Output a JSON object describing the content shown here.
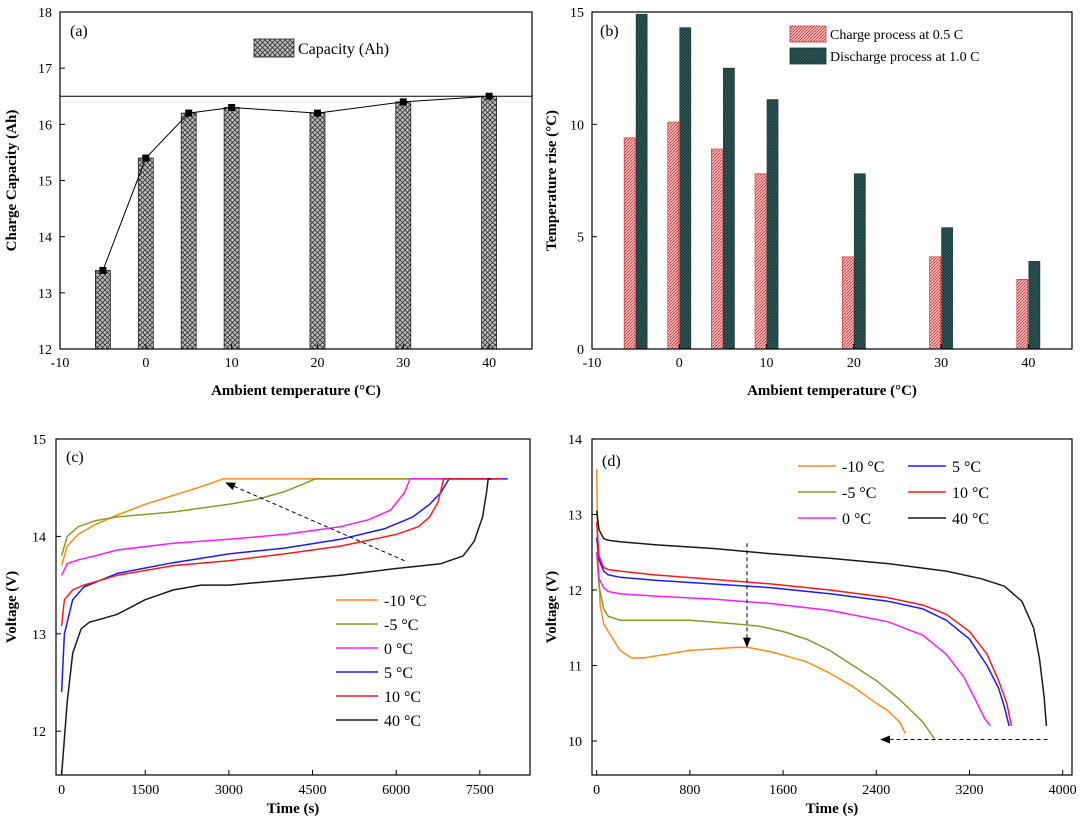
{
  "chart_data": [
    {
      "panel": "(a)",
      "type": "bar",
      "xlabel": "Ambient temperature (°C)",
      "ylabel": "Charge Capacity (Ah)",
      "xlim": [
        -10,
        45
      ],
      "ylim": [
        12,
        18
      ],
      "xticks": [
        -10,
        0,
        10,
        20,
        30,
        40
      ],
      "yticks": [
        12,
        13,
        14,
        15,
        16,
        17,
        18
      ],
      "x": [
        -5,
        0,
        5,
        10,
        20,
        30,
        40
      ],
      "values": [
        13.4,
        15.4,
        16.2,
        16.3,
        16.2,
        16.4,
        16.5
      ],
      "reference_line_y": 16.5,
      "legend": [
        "Capacity (Ah)"
      ],
      "legend_position": "top-center",
      "markers": "square-with-line"
    },
    {
      "panel": "(b)",
      "type": "bar",
      "xlabel": "Ambient temperature (°C)",
      "ylabel": "Temperature rise (°C)",
      "xlim": [
        -10,
        45
      ],
      "ylim": [
        0,
        15
      ],
      "xticks": [
        -10,
        0,
        10,
        20,
        30,
        40
      ],
      "yticks": [
        0,
        5,
        10,
        15
      ],
      "x": [
        -5,
        0,
        5,
        10,
        20,
        30,
        40
      ],
      "series": [
        {
          "name": "Charge process at 0.5 C",
          "color": "#f4a6a6",
          "values": [
            9.4,
            10.1,
            8.9,
            7.8,
            4.1,
            4.1,
            3.1
          ]
        },
        {
          "name": "Discharge process at 1.0 C",
          "color": "#2f5a5a",
          "values": [
            14.9,
            14.3,
            12.5,
            11.1,
            7.8,
            5.4,
            3.9
          ]
        }
      ],
      "legend_position": "top-right"
    },
    {
      "panel": "(c)",
      "type": "line",
      "xlabel": "Time (s)",
      "ylabel": "Voltage (V)",
      "xlim": [
        -100,
        8400
      ],
      "ylim": [
        11.55,
        15
      ],
      "xticks": [
        0,
        1500,
        3000,
        4500,
        6000,
        7500
      ],
      "yticks": [
        12,
        13,
        14,
        15
      ],
      "legend_position": "bottom-right",
      "annotation": "dashed arrow from (6150, 13.75) to (2950, 14.55)",
      "series": [
        {
          "name": "-10 °C",
          "color": "#ff8c1a",
          "x": [
            0,
            100,
            300,
            600,
            1000,
            1500,
            2000,
            2500,
            2900,
            3500,
            4500,
            6000,
            7000,
            7800
          ],
          "y": [
            13.7,
            13.9,
            14.02,
            14.12,
            14.22,
            14.33,
            14.42,
            14.51,
            14.59,
            14.59,
            14.59,
            14.59,
            14.59,
            14.59
          ]
        },
        {
          "name": "-5 °C",
          "color": "#8a9a2a",
          "x": [
            0,
            100,
            300,
            600,
            1000,
            2000,
            3000,
            3500,
            4000,
            4300,
            4550,
            5000,
            6000,
            7000,
            7800
          ],
          "y": [
            13.8,
            14.0,
            14.1,
            14.16,
            14.2,
            14.25,
            14.33,
            14.38,
            14.46,
            14.53,
            14.59,
            14.59,
            14.59,
            14.59,
            14.59
          ]
        },
        {
          "name": "0 °C",
          "color": "#ff1aff",
          "x": [
            0,
            100,
            300,
            600,
            1000,
            2000,
            3000,
            4000,
            5000,
            5500,
            5900,
            6150,
            6250,
            6500,
            7000,
            7800
          ],
          "y": [
            13.6,
            13.72,
            13.76,
            13.8,
            13.86,
            13.93,
            13.97,
            14.02,
            14.1,
            14.17,
            14.27,
            14.45,
            14.59,
            14.59,
            14.59,
            14.59
          ]
        },
        {
          "name": "5 °C",
          "color": "#1a1aff",
          "x": [
            0,
            50,
            200,
            400,
            700,
            1000,
            2000,
            3000,
            4000,
            5000,
            5800,
            6300,
            6600,
            6800,
            6950,
            7000,
            7500,
            8000
          ],
          "y": [
            12.4,
            13.0,
            13.35,
            13.48,
            13.55,
            13.62,
            13.73,
            13.82,
            13.88,
            13.97,
            14.08,
            14.2,
            14.33,
            14.45,
            14.59,
            14.59,
            14.59,
            14.59
          ]
        },
        {
          "name": "10 °C",
          "color": "#ff1a1a",
          "x": [
            0,
            50,
            200,
            400,
            700,
            1000,
            2000,
            3000,
            4000,
            5000,
            6000,
            6400,
            6600,
            6750,
            6850,
            7000,
            7500,
            7900
          ],
          "y": [
            13.08,
            13.35,
            13.45,
            13.5,
            13.55,
            13.6,
            13.7,
            13.75,
            13.82,
            13.9,
            14.02,
            14.1,
            14.2,
            14.35,
            14.59,
            14.59,
            14.59,
            14.59
          ]
        },
        {
          "name": "40 °C",
          "color": "#1a1a1a",
          "x": [
            0,
            100,
            200,
            350,
            500,
            700,
            1000,
            1500,
            2000,
            2500,
            3000,
            4000,
            5000,
            6000,
            6800,
            7200,
            7400,
            7550,
            7620,
            7650,
            7700
          ],
          "y": [
            11.55,
            12.3,
            12.8,
            13.05,
            13.12,
            13.15,
            13.2,
            13.35,
            13.45,
            13.5,
            13.5,
            13.55,
            13.6,
            13.67,
            13.72,
            13.8,
            13.95,
            14.2,
            14.45,
            14.59,
            14.59
          ]
        }
      ]
    },
    {
      "panel": "(d)",
      "type": "line",
      "xlabel": "Time (s)",
      "ylabel": "Voltage (V)",
      "xlim": [
        -40,
        4080
      ],
      "ylim": [
        9.55,
        14
      ],
      "xticks": [
        0,
        800,
        1600,
        2400,
        3200,
        4000
      ],
      "yticks": [
        10,
        11,
        12,
        13,
        14
      ],
      "legend_position": "top",
      "annotation": "dashed arrow down at t=1290 from 12.6 V to 11.25 V; dashed arrow left at 10.02 V from t=3870 to t=2440",
      "series": [
        {
          "name": "-10 °C",
          "color": "#ff8c1a",
          "x": [
            0,
            10,
            30,
            60,
            100,
            200,
            300,
            400,
            600,
            800,
            1000,
            1200,
            1300,
            1500,
            1800,
            2000,
            2200,
            2400,
            2500,
            2600,
            2650
          ],
          "y": [
            13.6,
            12.5,
            11.8,
            11.55,
            11.45,
            11.2,
            11.1,
            11.1,
            11.15,
            11.2,
            11.22,
            11.24,
            11.24,
            11.18,
            11.05,
            10.9,
            10.72,
            10.5,
            10.4,
            10.25,
            10.1
          ]
        },
        {
          "name": "5 °C",
          "color": "#1a1aff",
          "x": [
            0,
            20,
            60,
            100,
            200,
            500,
            1000,
            1500,
            2000,
            2500,
            2800,
            3000,
            3200,
            3350,
            3450,
            3500,
            3540
          ],
          "y": [
            12.7,
            12.4,
            12.25,
            12.2,
            12.17,
            12.13,
            12.08,
            12.03,
            11.95,
            11.85,
            11.75,
            11.6,
            11.35,
            11.0,
            10.7,
            10.45,
            10.2
          ]
        },
        {
          "name": "-5 °C",
          "color": "#8a9a2a",
          "x": [
            0,
            20,
            60,
            100,
            200,
            400,
            800,
            1200,
            1400,
            1600,
            1800,
            2000,
            2200,
            2400,
            2600,
            2800,
            2900
          ],
          "y": [
            12.5,
            12.05,
            11.75,
            11.65,
            11.6,
            11.6,
            11.6,
            11.55,
            11.52,
            11.45,
            11.35,
            11.2,
            11.0,
            10.8,
            10.55,
            10.25,
            10.03
          ]
        },
        {
          "name": "10 °C",
          "color": "#ff1a1a",
          "x": [
            0,
            20,
            60,
            100,
            200,
            500,
            1000,
            1500,
            2000,
            2500,
            2800,
            3000,
            3200,
            3350,
            3450,
            3520,
            3560
          ],
          "y": [
            12.9,
            12.45,
            12.3,
            12.27,
            12.25,
            12.2,
            12.14,
            12.08,
            12.0,
            11.9,
            11.8,
            11.68,
            11.45,
            11.15,
            10.8,
            10.5,
            10.2
          ]
        },
        {
          "name": "0 °C",
          "color": "#ff1aff",
          "x": [
            0,
            20,
            60,
            100,
            200,
            500,
            1000,
            1500,
            2000,
            2500,
            2800,
            3000,
            3150,
            3250,
            3330,
            3380
          ],
          "y": [
            12.5,
            12.15,
            12.03,
            11.98,
            11.95,
            11.92,
            11.88,
            11.82,
            11.73,
            11.58,
            11.4,
            11.15,
            10.85,
            10.55,
            10.3,
            10.2
          ]
        },
        {
          "name": "40 °C",
          "color": "#1a1a1a",
          "x": [
            0,
            20,
            60,
            100,
            200,
            500,
            1000,
            1500,
            2000,
            2500,
            3000,
            3300,
            3500,
            3650,
            3750,
            3800,
            3840,
            3860
          ],
          "y": [
            13.05,
            12.8,
            12.68,
            12.66,
            12.64,
            12.6,
            12.55,
            12.48,
            12.42,
            12.35,
            12.25,
            12.15,
            12.05,
            11.85,
            11.5,
            11.1,
            10.6,
            10.2
          ]
        }
      ]
    }
  ]
}
